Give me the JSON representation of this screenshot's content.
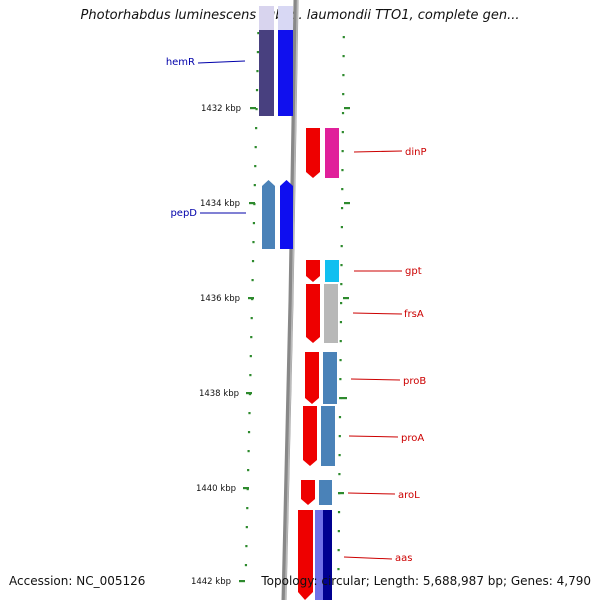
{
  "title": "Photorhabdus luminescens subsp. laumondii TTO1, complete gen...",
  "footer": {
    "accession": "Accession: NC_005126",
    "summary": "Topology: circular; Length: 5,688,987 bp; Genes: 4,790"
  },
  "scale_labels": [
    "1432 kbp",
    "1434 kbp",
    "1436 kbp",
    "1438 kbp",
    "1440 kbp",
    "1442 kbp"
  ],
  "genes": [
    {
      "name": "hemR",
      "strand": "-",
      "color": "#000080"
    },
    {
      "name": "pepD",
      "strand": "-",
      "color": "#000080"
    },
    {
      "name": "dinP",
      "strand": "+",
      "color": "#cc0000"
    },
    {
      "name": "gpt",
      "strand": "+",
      "color": "#cc0000"
    },
    {
      "name": "frsA",
      "strand": "+",
      "color": "#cc0000"
    },
    {
      "name": "proB",
      "strand": "+",
      "color": "#cc0000"
    },
    {
      "name": "proA",
      "strand": "+",
      "color": "#cc0000"
    },
    {
      "name": "aroL",
      "strand": "+",
      "color": "#cc0000"
    },
    {
      "name": "aas",
      "strand": "+",
      "color": "#cc0000"
    }
  ]
}
